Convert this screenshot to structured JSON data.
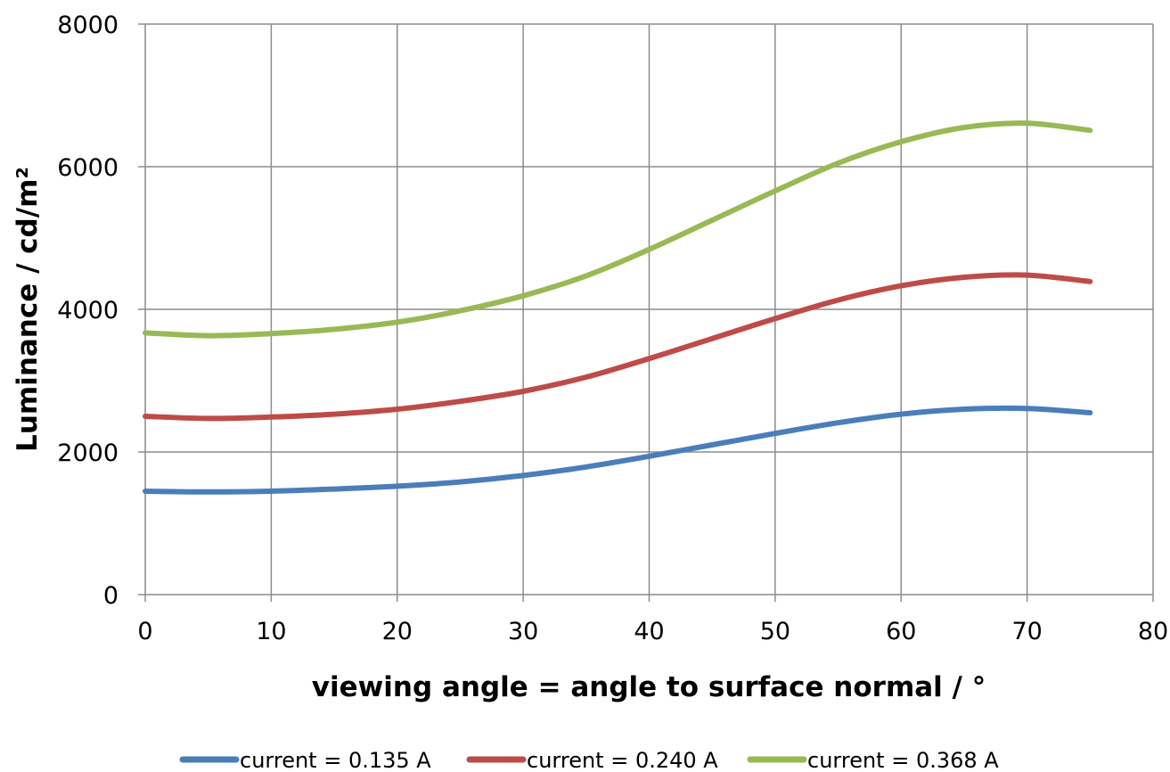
{
  "chart_data": {
    "type": "line",
    "title": "",
    "xlabel": "viewing angle = angle to surface normal / °",
    "ylabel": "Luminance / cd/m²",
    "xlim": [
      0,
      80
    ],
    "ylim": [
      0,
      8000
    ],
    "x_ticks": [
      "0",
      "10",
      "20",
      "30",
      "40",
      "50",
      "60",
      "70",
      "80"
    ],
    "y_ticks": [
      "0",
      "2000",
      "4000",
      "6000",
      "8000"
    ],
    "grid": true,
    "legend_position": "bottom",
    "x": [
      0,
      5,
      10,
      15,
      20,
      25,
      30,
      35,
      40,
      45,
      50,
      55,
      60,
      65,
      70,
      75
    ],
    "series": [
      {
        "name": "current = 0.135 A",
        "color": "#4a7ebb",
        "values": [
          1450,
          1440,
          1450,
          1480,
          1520,
          1580,
          1670,
          1790,
          1940,
          2100,
          2260,
          2410,
          2530,
          2600,
          2610,
          2550
        ]
      },
      {
        "name": "current = 0.240 A",
        "color": "#be4b48",
        "values": [
          2500,
          2470,
          2490,
          2530,
          2600,
          2710,
          2850,
          3050,
          3310,
          3590,
          3870,
          4130,
          4330,
          4450,
          4480,
          4390
        ]
      },
      {
        "name": "current = 0.368 A",
        "color": "#98b954",
        "values": [
          3670,
          3630,
          3660,
          3720,
          3820,
          3980,
          4190,
          4470,
          4840,
          5250,
          5660,
          6050,
          6350,
          6550,
          6610,
          6510
        ]
      }
    ]
  }
}
